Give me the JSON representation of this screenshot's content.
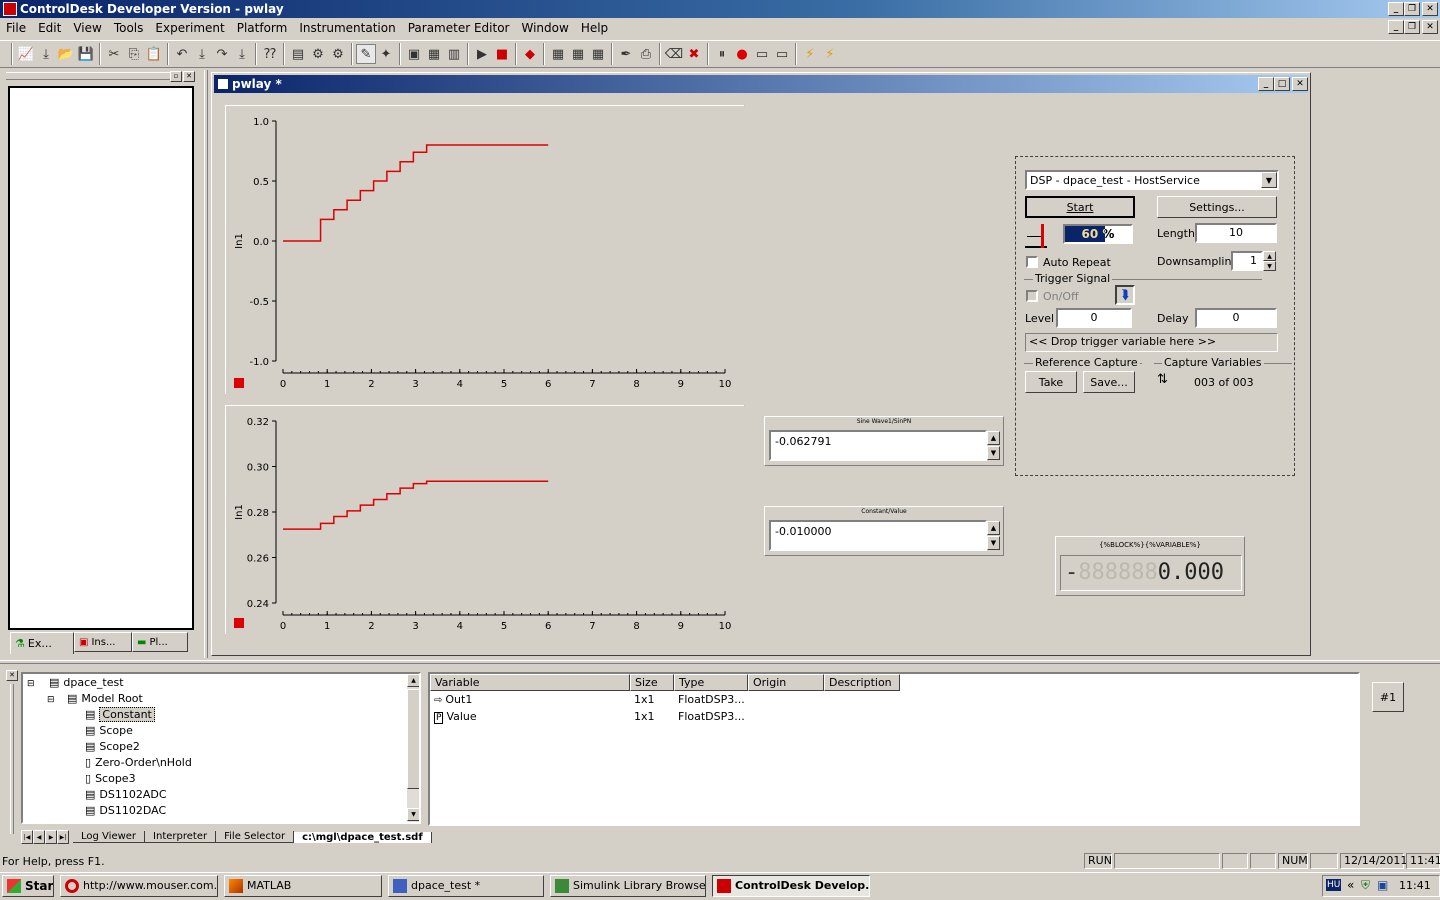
{
  "window": {
    "title": "ControlDesk Developer Version - pwlay"
  },
  "menu": [
    "File",
    "Edit",
    "View",
    "Tools",
    "Experiment",
    "Platform",
    "Instrumentation",
    "Parameter Editor",
    "Window",
    "Help"
  ],
  "left_panel": {
    "tabs": [
      "Ex...",
      "Ins...",
      "Pl..."
    ]
  },
  "layout_window": {
    "title": "pwlay *"
  },
  "plot1": {
    "ylabel": "In1",
    "yticks": [
      "1.0",
      "0.5",
      "0.0",
      "-0.5",
      "-1.0"
    ],
    "xticks": [
      "0",
      "1",
      "2",
      "3",
      "4",
      "5",
      "6",
      "7",
      "8",
      "9",
      "10"
    ]
  },
  "plot2": {
    "ylabel": "In1",
    "yticks": [
      "0.32",
      "0.30",
      "0.28",
      "0.26",
      "0.24"
    ],
    "xticks": [
      "0",
      "1",
      "2",
      "3",
      "4",
      "5",
      "6",
      "7",
      "8",
      "9",
      "10"
    ]
  },
  "colors": {
    "trace": "#dd0000",
    "selection": "#0a246a"
  },
  "numeric1": {
    "label": "Sine Wave1/SinPN",
    "value": "-0.062791"
  },
  "numeric2": {
    "label": "Constant/Value",
    "value": "-0.010000"
  },
  "capture": {
    "service": "DSP - dpace_test - HostService",
    "start": "Start",
    "settings": "Settings...",
    "progress": "60 %",
    "progress_value": 0.6,
    "length_label": "Length",
    "length": "10",
    "auto_repeat": "Auto Repeat",
    "downsampling_label": "Downsampling",
    "downsampling": "1",
    "trigger_signal": "Trigger Signal",
    "onoff": "On/Off",
    "level_label": "Level",
    "level": "0",
    "delay_label": "Delay",
    "delay": "0",
    "drop_trigger": "<< Drop trigger variable here >>",
    "reference_capture": "Reference Capture",
    "capture_variables": "Capture Variables",
    "take": "Take",
    "save": "Save...",
    "count": "003 of 003"
  },
  "display": {
    "label": "{%BLOCK%}{%VARIABLE%}",
    "sign": "-",
    "digits": "888888",
    "value": "0.000"
  },
  "tree": {
    "items": [
      "dpace_test",
      "Model Root",
      "Constant",
      "Scope",
      "Scope2",
      "Zero-Order\\nHold",
      "Scope3",
      "DS1102ADC",
      "DS1102DAC"
    ]
  },
  "bottom_tabs": [
    "Log Viewer",
    "Interpreter",
    "File Selector",
    "c:\\mgl\\dpace_test.sdf"
  ],
  "var_table": {
    "headers": [
      "Variable",
      "Size",
      "Type",
      "Origin",
      "Description"
    ],
    "rows": [
      [
        "Out1",
        "1x1",
        "FloatDSP3...",
        "",
        ""
      ],
      [
        "Value",
        "1x1",
        "FloatDSP3...",
        "",
        ""
      ]
    ]
  },
  "side_button": "#1",
  "status": {
    "help": "For Help, press F1.",
    "run": "RUN",
    "num": "NUM",
    "date": "12/14/2011",
    "time": "11:41"
  },
  "taskbar": {
    "start": "Start",
    "items": [
      "http://www.mouser.com...",
      "MATLAB",
      "dpace_test *",
      "Simulink Library Browser",
      "ControlDesk Develop..."
    ],
    "tray_lang": "HU",
    "tray_time": "11:41"
  }
}
